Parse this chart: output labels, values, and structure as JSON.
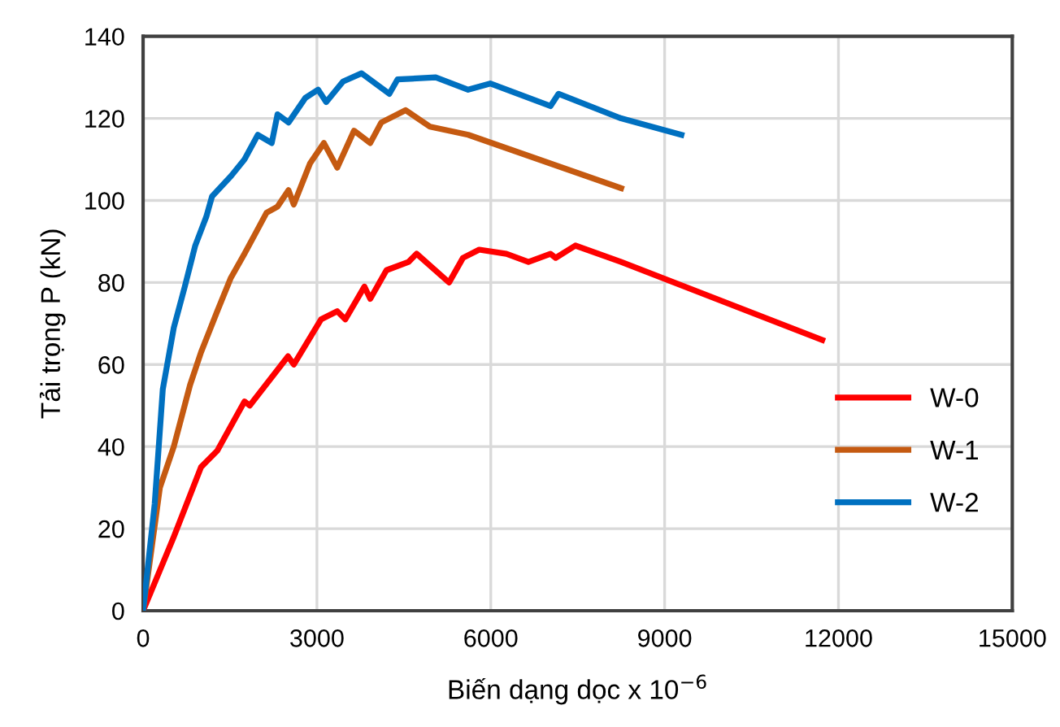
{
  "chart_data": {
    "type": "line",
    "xlabel": "Biến dạng dọc x 10$^{−6}$",
    "ylabel": "Tải trọng P (kN)",
    "xlim": [
      0,
      15000
    ],
    "xticks": [
      0,
      3000,
      6000,
      9000,
      12000,
      15000
    ],
    "ylim": [
      0,
      140
    ],
    "yticks": [
      0,
      20,
      40,
      60,
      80,
      100,
      120,
      140
    ],
    "grid": true,
    "legend": "bottom right",
    "line_style": "solid",
    "marker": "none",
    "series": [
      {
        "name": "W-0",
        "color": "#ff0000",
        "x": [
          0,
          530,
          1000,
          1280,
          1750,
          1840,
          2500,
          2600,
          3070,
          3350,
          3490,
          3820,
          3920,
          4200,
          4580,
          4720,
          5280,
          5520,
          5800,
          6270,
          6650,
          7030,
          7120,
          7460,
          8250,
          11720
        ],
        "values": [
          0,
          18,
          35,
          39,
          51,
          50,
          62,
          60,
          71,
          73,
          71,
          79,
          76,
          83,
          85,
          87,
          80,
          86,
          88,
          87,
          85,
          87,
          86,
          89,
          85,
          66
        ]
      },
      {
        "name": "W-1",
        "color": "#c55a11",
        "x": [
          0,
          290,
          530,
          810,
          1000,
          1280,
          1510,
          1750,
          1940,
          2130,
          2320,
          2510,
          2600,
          2880,
          3120,
          3350,
          3640,
          3920,
          4110,
          4530,
          4950,
          5610,
          8250
        ],
        "values": [
          0,
          30,
          40,
          55,
          63,
          73,
          81,
          87,
          92,
          97,
          98.5,
          102.5,
          99,
          109,
          114,
          108,
          117,
          114,
          119,
          122,
          118,
          116,
          103
        ]
      },
      {
        "name": "W-2",
        "color": "#0070c0",
        "x": [
          0,
          200,
          340,
          530,
          720,
          900,
          1090,
          1190,
          1520,
          1750,
          1980,
          2220,
          2320,
          2510,
          2800,
          3020,
          3160,
          3450,
          3770,
          4250,
          4390,
          5050,
          5610,
          5990,
          7030,
          7170,
          8250,
          9290
        ],
        "values": [
          0,
          26,
          54,
          69,
          79,
          89,
          96,
          101,
          106,
          110,
          116,
          114,
          121,
          119,
          125,
          127,
          124,
          129,
          131,
          126,
          129.5,
          130,
          127,
          128.5,
          123,
          126,
          120,
          116
        ]
      }
    ]
  }
}
